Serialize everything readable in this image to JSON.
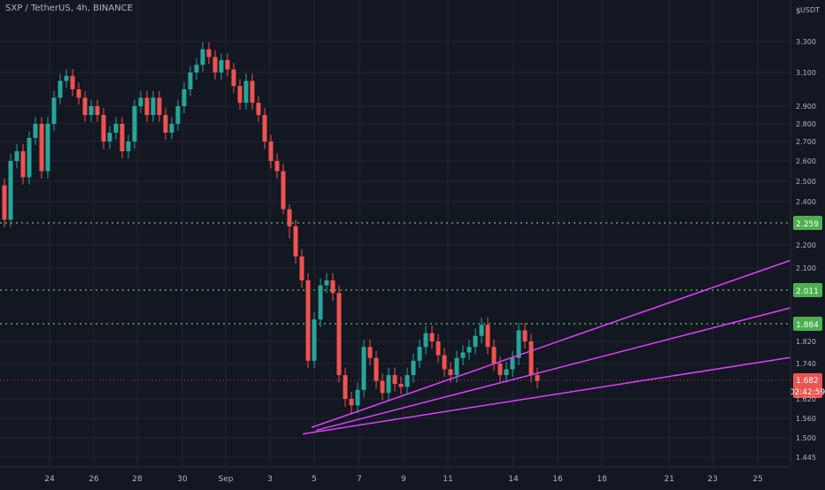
{
  "header": {
    "title": "SXP / TetherUS, 4h, BINANCE"
  },
  "chart_data": {
    "type": "candlestick",
    "currency": "USDT",
    "currency_marker": "$",
    "grid": true,
    "price_axis": {
      "min": 1.445,
      "max": 3.48,
      "ticks": [
        "3.300",
        "3.100",
        "2.900",
        "2.800",
        "2.700",
        "2.600",
        "2.500",
        "2.400",
        "2.200",
        "2.100",
        "1.820",
        "1.740",
        "1.620",
        "1.560",
        "1.500",
        "1.445"
      ]
    },
    "time_axis": {
      "labels": [
        "24",
        "26",
        "28",
        "30",
        "Sep",
        "3",
        "5",
        "7",
        "9",
        "11",
        "14",
        "16",
        "18",
        "21",
        "23",
        "25"
      ]
    },
    "levels": [
      {
        "price": 2.259,
        "label": "2.259",
        "color": "#4caf50"
      },
      {
        "price": 2.011,
        "label": "2.011",
        "color": "#4caf50"
      },
      {
        "price": 1.884,
        "label": "1.884",
        "color": "#4caf50"
      }
    ],
    "last_price": {
      "price": 1.682,
      "label": "1.682",
      "countdown": "02:42:59",
      "color": "#ef5350"
    },
    "trendlines": [
      {
        "from": {
          "t": 352,
          "p": 1.532
        },
        "to": {
          "t": 893,
          "p": 2.133
        }
      },
      {
        "from": {
          "t": 357,
          "p": 1.523
        },
        "to": {
          "t": 893,
          "p": 1.944
        }
      },
      {
        "from": {
          "t": 342,
          "p": 1.512
        },
        "to": {
          "t": 893,
          "p": 1.762
        }
      }
    ],
    "candles_close": [
      2.28,
      2.6,
      2.65,
      2.52,
      2.72,
      2.8,
      2.55,
      2.8,
      2.95,
      3.05,
      3.08,
      3.0,
      2.95,
      2.85,
      2.9,
      2.85,
      2.7,
      2.75,
      2.8,
      2.65,
      2.7,
      2.9,
      2.95,
      2.85,
      2.95,
      2.85,
      2.75,
      2.8,
      2.9,
      3.0,
      3.1,
      3.15,
      3.25,
      3.2,
      3.1,
      3.18,
      3.12,
      3.02,
      2.92,
      3.05,
      2.92,
      2.85,
      2.7,
      2.6,
      2.55,
      2.35,
      2.25,
      2.15,
      2.05,
      1.75,
      1.9,
      2.03,
      2.05,
      2.0,
      1.7,
      1.62,
      1.6,
      1.65,
      1.8,
      1.76,
      1.68,
      1.64,
      1.7,
      1.67,
      1.66,
      1.7,
      1.75,
      1.8,
      1.85,
      1.82,
      1.77,
      1.72,
      1.7,
      1.76,
      1.78,
      1.8,
      1.84,
      1.88,
      1.8,
      1.74,
      1.7,
      1.72,
      1.76,
      1.86,
      1.82,
      1.7,
      1.68
    ]
  }
}
